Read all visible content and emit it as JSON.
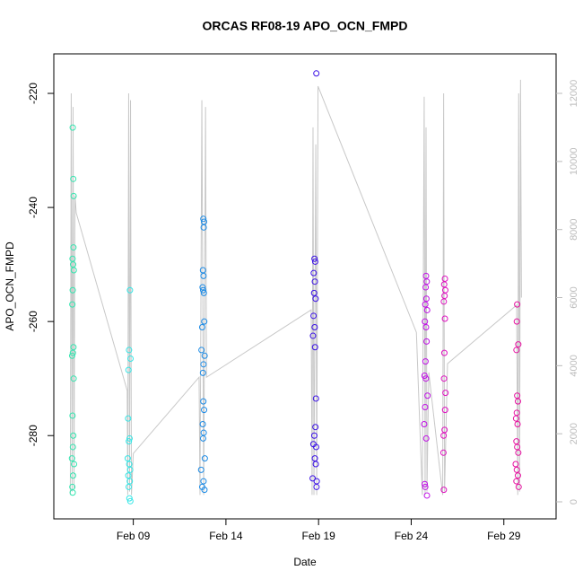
{
  "chart_data": {
    "type": "scatter",
    "title": "ORCAS RF08-19 APO_OCN_FMPD",
    "x_label": "Date",
    "y_label": "APO_OCN_FMPD",
    "xlim": [
      4.71,
      31.82
    ],
    "xticks": [
      {
        "value": 9,
        "label": "Feb 09"
      },
      {
        "value": 14,
        "label": "Feb 14"
      },
      {
        "value": 19,
        "label": "Feb 19"
      },
      {
        "value": 24,
        "label": "Feb 24"
      },
      {
        "value": 29,
        "label": "Feb 29"
      }
    ],
    "ylim": [
      -294.6,
      -213.07
    ],
    "yticks": [
      -220,
      -240,
      -260,
      -280
    ],
    "y2lim": [
      -501,
      13161
    ],
    "y2ticks": [
      0,
      2000,
      4000,
      6000,
      8000,
      10000,
      12000
    ],
    "series": [
      {
        "type": "line",
        "axis": "y2",
        "color": "#c8c8c8",
        "x": [
          5.6,
          5.65,
          5.7,
          5.75,
          5.8,
          5.85,
          5.92,
          8.67,
          8.7,
          8.75,
          8.8,
          8.85,
          8.9,
          9.0,
          12.55,
          12.6,
          12.7,
          12.8,
          12.9,
          12.95,
          18.6,
          18.65,
          18.7,
          18.75,
          18.85,
          18.9,
          18.97,
          24.28,
          24.6,
          24.7,
          24.75,
          24.8,
          24.85,
          24.95,
          25.7,
          25.75,
          25.8,
          25.96,
          29.69,
          29.75,
          29.8,
          29.85,
          29.9,
          29.95
        ],
        "values": [
          200,
          12000,
          300,
          11600,
          400,
          9000,
          8490,
          3270,
          200,
          12000,
          300,
          11800,
          200,
          1420,
          3660,
          200,
          11800,
          200,
          11600,
          3660,
          5640,
          200,
          11000,
          200,
          10500,
          200,
          12210,
          4980,
          200,
          11900,
          200,
          11000,
          300,
          3800,
          200,
          12000,
          300,
          4060,
          5780,
          200,
          12000,
          300,
          12400,
          6000
        ]
      },
      {
        "color": "#33e6b0",
        "x": [
          5.73,
          5.76,
          5.78,
          5.77,
          5.72,
          5.75,
          5.79,
          5.73,
          5.71,
          5.77,
          5.74,
          5.7,
          5.78,
          5.72,
          5.76,
          5.74,
          5.69,
          5.8,
          5.75,
          5.71,
          5.73
        ],
        "values": [
          -226,
          -235,
          -238,
          -247,
          -249,
          -250,
          -251,
          -254.5,
          -257,
          -264.5,
          -265.5,
          -266,
          -270,
          -276.5,
          -280,
          -282,
          -284,
          -285,
          -287,
          -289,
          -290
        ]
      },
      {
        "color": "#33e6e6",
        "x": [
          8.82,
          8.77,
          8.85,
          8.74,
          8.72,
          8.8,
          8.76,
          8.7,
          8.78,
          8.83,
          8.73,
          8.81,
          8.75,
          8.79,
          8.84
        ],
        "values": [
          -254.5,
          -265,
          -266.5,
          -268.5,
          -277,
          -280.5,
          -281,
          -284,
          -285,
          -286,
          -287,
          -288,
          -289,
          -291,
          -291.5
        ]
      },
      {
        "color": "#1a8ae6",
        "x": [
          12.78,
          12.82,
          12.8,
          12.76,
          12.79,
          12.74,
          12.77,
          12.81,
          12.83,
          12.72,
          12.68,
          12.85,
          12.79,
          12.76,
          12.78,
          12.82,
          12.75,
          12.8,
          12.77,
          12.86,
          12.66,
          12.79,
          12.72,
          12.84
        ],
        "values": [
          -242,
          -242.5,
          -243.5,
          -251,
          -252,
          -254,
          -254.5,
          -255,
          -260,
          -261,
          -265,
          -266,
          -267.5,
          -269,
          -274,
          -275.5,
          -278,
          -279.5,
          -280.5,
          -284,
          -286,
          -288,
          -289,
          -289.5
        ]
      },
      {
        "color": "#3a10e6",
        "x": [
          18.88,
          18.78,
          18.82,
          18.74,
          18.8,
          18.76,
          18.84,
          18.73,
          18.79,
          18.7,
          18.81,
          18.86,
          18.83,
          18.77,
          18.72,
          18.87,
          18.8,
          18.85,
          18.68,
          18.9,
          18.89
        ],
        "values": [
          -216.5,
          -249,
          -249.5,
          -251.5,
          -253,
          -255,
          -256,
          -259,
          -261,
          -262.5,
          -264.5,
          -273.5,
          -278.5,
          -280,
          -281.5,
          -282,
          -284,
          -285,
          -287.5,
          -288,
          -289
        ]
      },
      {
        "color": "#c010e6",
        "x": [
          24.8,
          24.84,
          24.78,
          24.82,
          24.76,
          24.86,
          24.74,
          24.8,
          24.83,
          24.77,
          24.72,
          24.79,
          24.88,
          24.75,
          24.7,
          24.81,
          24.73,
          24.76,
          24.85
        ],
        "values": [
          -252,
          -253,
          -254,
          -256,
          -257,
          -258,
          -260,
          -261,
          -263.5,
          -267,
          -269.5,
          -270,
          -273,
          -275,
          -278,
          -280.5,
          -288.5,
          -289,
          -290.5
        ]
      },
      {
        "color": "#e010c0",
        "x": [
          25.82,
          25.78,
          25.84,
          25.8,
          25.76,
          25.82,
          25.79,
          25.77,
          25.85,
          25.83,
          25.8,
          25.75,
          25.74,
          25.76
        ],
        "values": [
          -252.5,
          -253.5,
          -254.5,
          -255.5,
          -256.5,
          -259.5,
          -265.5,
          -270,
          -272.5,
          -275.5,
          -279,
          -280,
          -283,
          -289.5
        ]
      },
      {
        "color": "#e610a0",
        "x": [
          29.72,
          29.7,
          29.78,
          29.68,
          29.72,
          29.76,
          29.7,
          29.66,
          29.74,
          29.68,
          29.72,
          29.78,
          29.64,
          29.7,
          29.76,
          29.68,
          29.8
        ],
        "values": [
          -257,
          -260,
          -264,
          -265,
          -273,
          -274,
          -276,
          -277,
          -278,
          -281,
          -282,
          -283,
          -285,
          -286,
          -287,
          -288,
          -289
        ]
      }
    ]
  }
}
